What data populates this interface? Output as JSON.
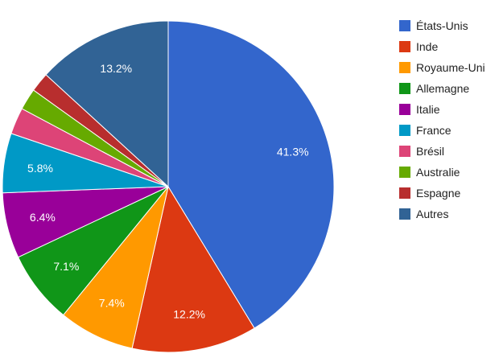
{
  "chart_data": {
    "type": "pie",
    "title": "",
    "legend_position": "right",
    "slices": [
      {
        "label": "États-Unis",
        "value": 41.3,
        "color": "#3366cc",
        "show_label": true
      },
      {
        "label": "Inde",
        "value": 12.2,
        "color": "#dc3912",
        "show_label": true
      },
      {
        "label": "Royaume-Uni",
        "value": 7.4,
        "color": "#ff9900",
        "show_label": true
      },
      {
        "label": "Allemagne",
        "value": 7.1,
        "color": "#109618",
        "show_label": true
      },
      {
        "label": "Italie",
        "value": 6.4,
        "color": "#990099",
        "show_label": true
      },
      {
        "label": "France",
        "value": 5.8,
        "color": "#0099c6",
        "show_label": true
      },
      {
        "label": "Brésil",
        "value": 2.6,
        "color": "#dd4477",
        "show_label": false
      },
      {
        "label": "Australie",
        "value": 2.1,
        "color": "#66aa00",
        "show_label": false
      },
      {
        "label": "Espagne",
        "value": 1.9,
        "color": "#b82e2e",
        "show_label": false
      },
      {
        "label": "Autres",
        "value": 13.2,
        "color": "#316395",
        "show_label": true
      }
    ]
  }
}
